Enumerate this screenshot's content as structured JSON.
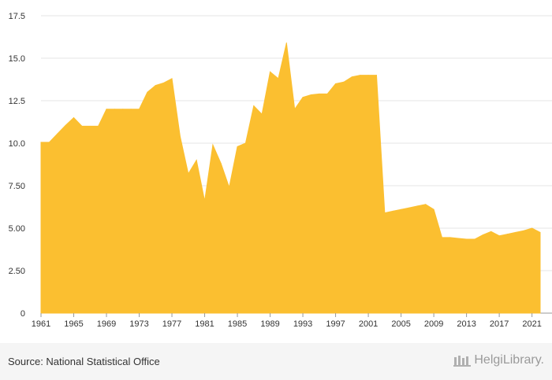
{
  "chart_data": {
    "type": "area",
    "title": "",
    "xlabel": "",
    "ylabel": "",
    "x": [
      1961,
      1962,
      1963,
      1964,
      1965,
      1966,
      1967,
      1968,
      1969,
      1970,
      1971,
      1972,
      1973,
      1974,
      1975,
      1976,
      1977,
      1978,
      1979,
      1980,
      1981,
      1982,
      1983,
      1984,
      1985,
      1986,
      1987,
      1988,
      1989,
      1990,
      1991,
      1992,
      1993,
      1994,
      1995,
      1996,
      1997,
      1998,
      1999,
      2000,
      2001,
      2002,
      2003,
      2004,
      2005,
      2006,
      2007,
      2008,
      2009,
      2010,
      2011,
      2012,
      2013,
      2014,
      2015,
      2016,
      2017,
      2018,
      2019,
      2020,
      2021,
      2022
    ],
    "values": [
      10.05,
      10.05,
      10.55,
      11.05,
      11.5,
      11.0,
      11.0,
      11.0,
      12.0,
      12.0,
      12.0,
      12.0,
      12.0,
      13.0,
      13.4,
      13.55,
      13.8,
      10.4,
      8.2,
      9.0,
      6.6,
      9.9,
      8.8,
      7.4,
      9.8,
      10.0,
      12.2,
      11.7,
      14.2,
      13.8,
      15.9,
      12.0,
      12.7,
      12.85,
      12.9,
      12.9,
      13.5,
      13.6,
      13.9,
      14.0,
      14.0,
      14.0,
      5.9,
      6.0,
      6.1,
      6.2,
      6.3,
      6.4,
      6.1,
      4.45,
      4.45,
      4.4,
      4.35,
      4.35,
      4.6,
      4.8,
      4.55,
      4.65,
      4.75,
      4.85,
      5.0,
      4.75
    ],
    "xlim": [
      1961,
      2022
    ],
    "ylim": [
      0,
      17.5
    ],
    "x_ticks": [
      "1961",
      "1965",
      "1969",
      "1973",
      "1977",
      "1981",
      "1985",
      "1989",
      "1993",
      "1997",
      "2001",
      "2005",
      "2009",
      "2013",
      "2017",
      "2021"
    ],
    "y_ticks": [
      "0",
      "2.50",
      "5.00",
      "7.50",
      "10.0",
      "12.5",
      "15.0",
      "17.5"
    ],
    "grid": true,
    "color": "#FBBF30",
    "grid_color": "#e6e6e6"
  },
  "footer": {
    "source": "Source: National Statistical Office",
    "logo": "HelgiLibrary."
  }
}
